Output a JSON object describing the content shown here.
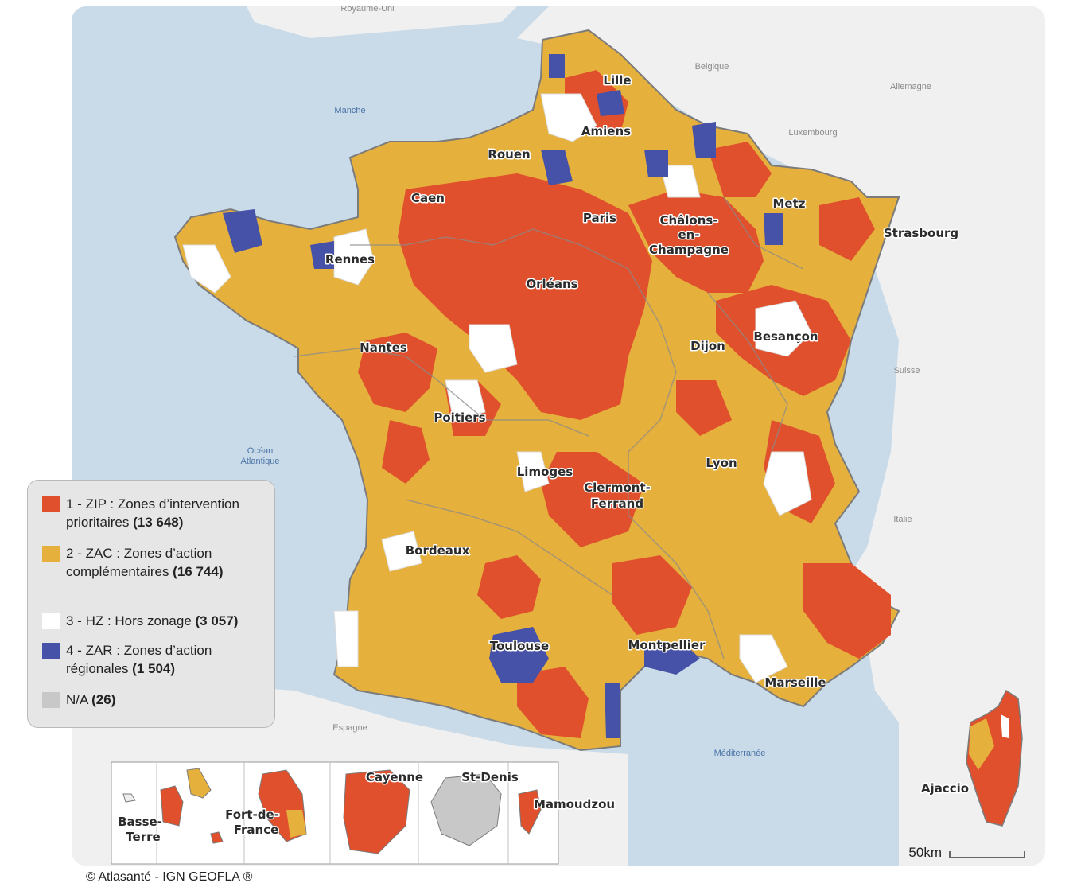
{
  "colors": {
    "zip": "#e0502d",
    "zac": "#e5b03c",
    "hz": "#ffffff",
    "zar": "#4651a8",
    "na": "#c8c8c8",
    "sea": "#c9dae8",
    "neighbor_land": "#f0f0f0",
    "border": "#7b7b7b"
  },
  "sea_labels": [
    "Manche",
    "Océan\nAtlantique",
    "Méditerranée"
  ],
  "country_labels": [
    "Royaume-Uni",
    "Belgique",
    "Allemagne",
    "Luxembourg",
    "Suisse",
    "Italie",
    "Espagne"
  ],
  "cities": [
    "Lille",
    "Amiens",
    "Rouen",
    "Caen",
    "Paris",
    "Châlons-",
    "en-",
    "Champagne",
    "Metz",
    "Strasbourg",
    "Rennes",
    "Orléans",
    "Nantes",
    "Dijon",
    "Besançon",
    "Poitiers",
    "Limoges",
    "Lyon",
    "Clermont-",
    "Ferrand",
    "Bordeaux",
    "Toulouse",
    "Montpellier",
    "Marseille",
    "Ajaccio"
  ],
  "overseas_labels": [
    "Basse-",
    "Terre",
    "Fort-de-",
    "France",
    "Cayenne",
    "St-Denis",
    "Mamoudzou"
  ],
  "legend": [
    {
      "prefix": "1 - ",
      "label": "ZIP : Zones d’intervention prioritaires",
      "count": "(13 648)",
      "color_key": "zip"
    },
    {
      "prefix": "2 - ",
      "label": "ZAC : Zones d’action complémentaires",
      "count": "(16 744)",
      "color_key": "zac"
    },
    {
      "prefix": "3 - ",
      "label": "HZ : Hors zonage",
      "count": "(3 057)",
      "color_key": "hz"
    },
    {
      "prefix": "4 - ",
      "label": "ZAR : Zones d’action régionales",
      "count": "(1 504)",
      "color_key": "zar"
    },
    {
      "prefix": "",
      "label": "N/A",
      "count": "(26)",
      "color_key": "na"
    }
  ],
  "scale_label": "50km",
  "credit": "© Atlasanté - IGN GEOFLA ®"
}
